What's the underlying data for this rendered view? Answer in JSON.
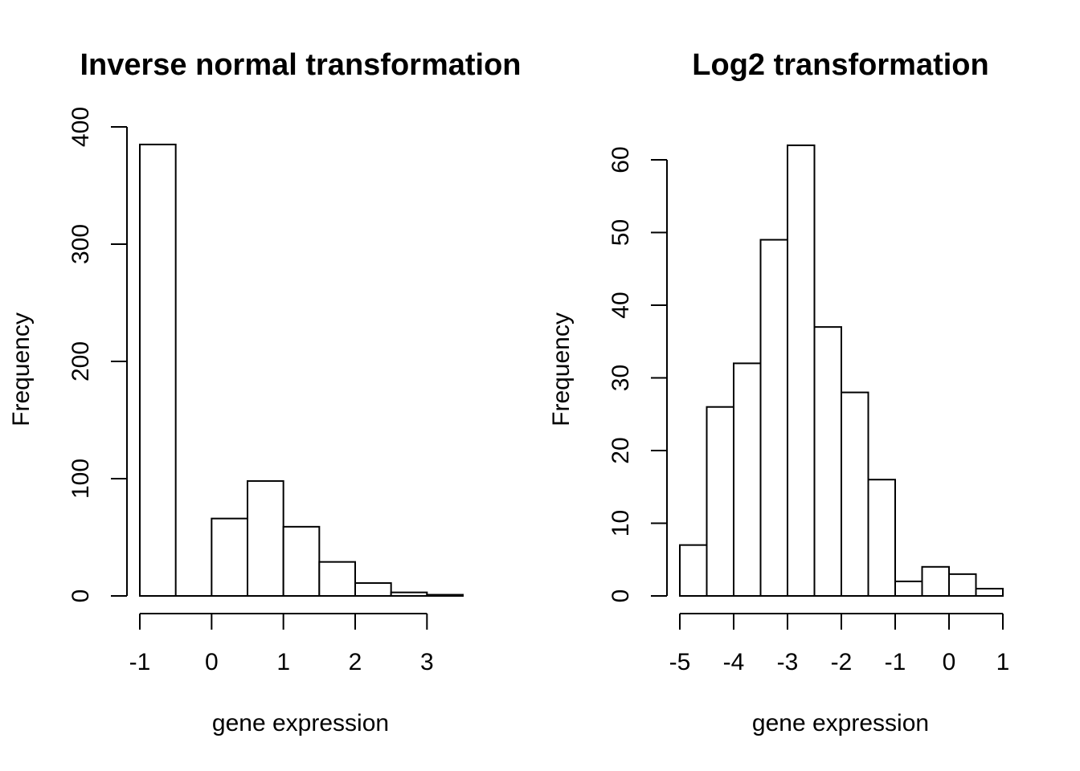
{
  "chart_data": [
    {
      "type": "bar",
      "title": "Inverse normal transformation",
      "xlabel": "gene expression",
      "ylabel": "Frequency",
      "bin_edges": [
        -1,
        -0.5,
        0,
        0.5,
        1,
        1.5,
        2,
        2.5,
        3,
        3.5
      ],
      "values": [
        385,
        0,
        66,
        98,
        59,
        29,
        11,
        3,
        1
      ],
      "xticks": [
        -1,
        0,
        1,
        2,
        3
      ],
      "xtick_labels": [
        "-1",
        "0",
        "1",
        "2",
        "3"
      ],
      "yticks": [
        0,
        100,
        200,
        300,
        400
      ],
      "ytick_labels": [
        "0",
        "100",
        "200",
        "300",
        "400"
      ],
      "grid": false
    },
    {
      "type": "bar",
      "title": "Log2 transformation",
      "xlabel": "gene expression",
      "ylabel": "Frequency",
      "bin_edges": [
        -5,
        -4.5,
        -4,
        -3.5,
        -3,
        -2.5,
        -2,
        -1.5,
        -1,
        -0.5,
        0,
        0.5,
        1
      ],
      "values": [
        7,
        26,
        32,
        49,
        62,
        37,
        28,
        16,
        2,
        4,
        3,
        1
      ],
      "xticks": [
        -5,
        -4,
        -3,
        -2,
        -1,
        0,
        1
      ],
      "xtick_labels": [
        "-5",
        "-4",
        "-3",
        "-2",
        "-1",
        "0",
        "1"
      ],
      "yticks": [
        0,
        10,
        20,
        30,
        40,
        50,
        60
      ],
      "ytick_labels": [
        "0",
        "10",
        "20",
        "30",
        "40",
        "50",
        "60"
      ],
      "grid": false
    }
  ]
}
